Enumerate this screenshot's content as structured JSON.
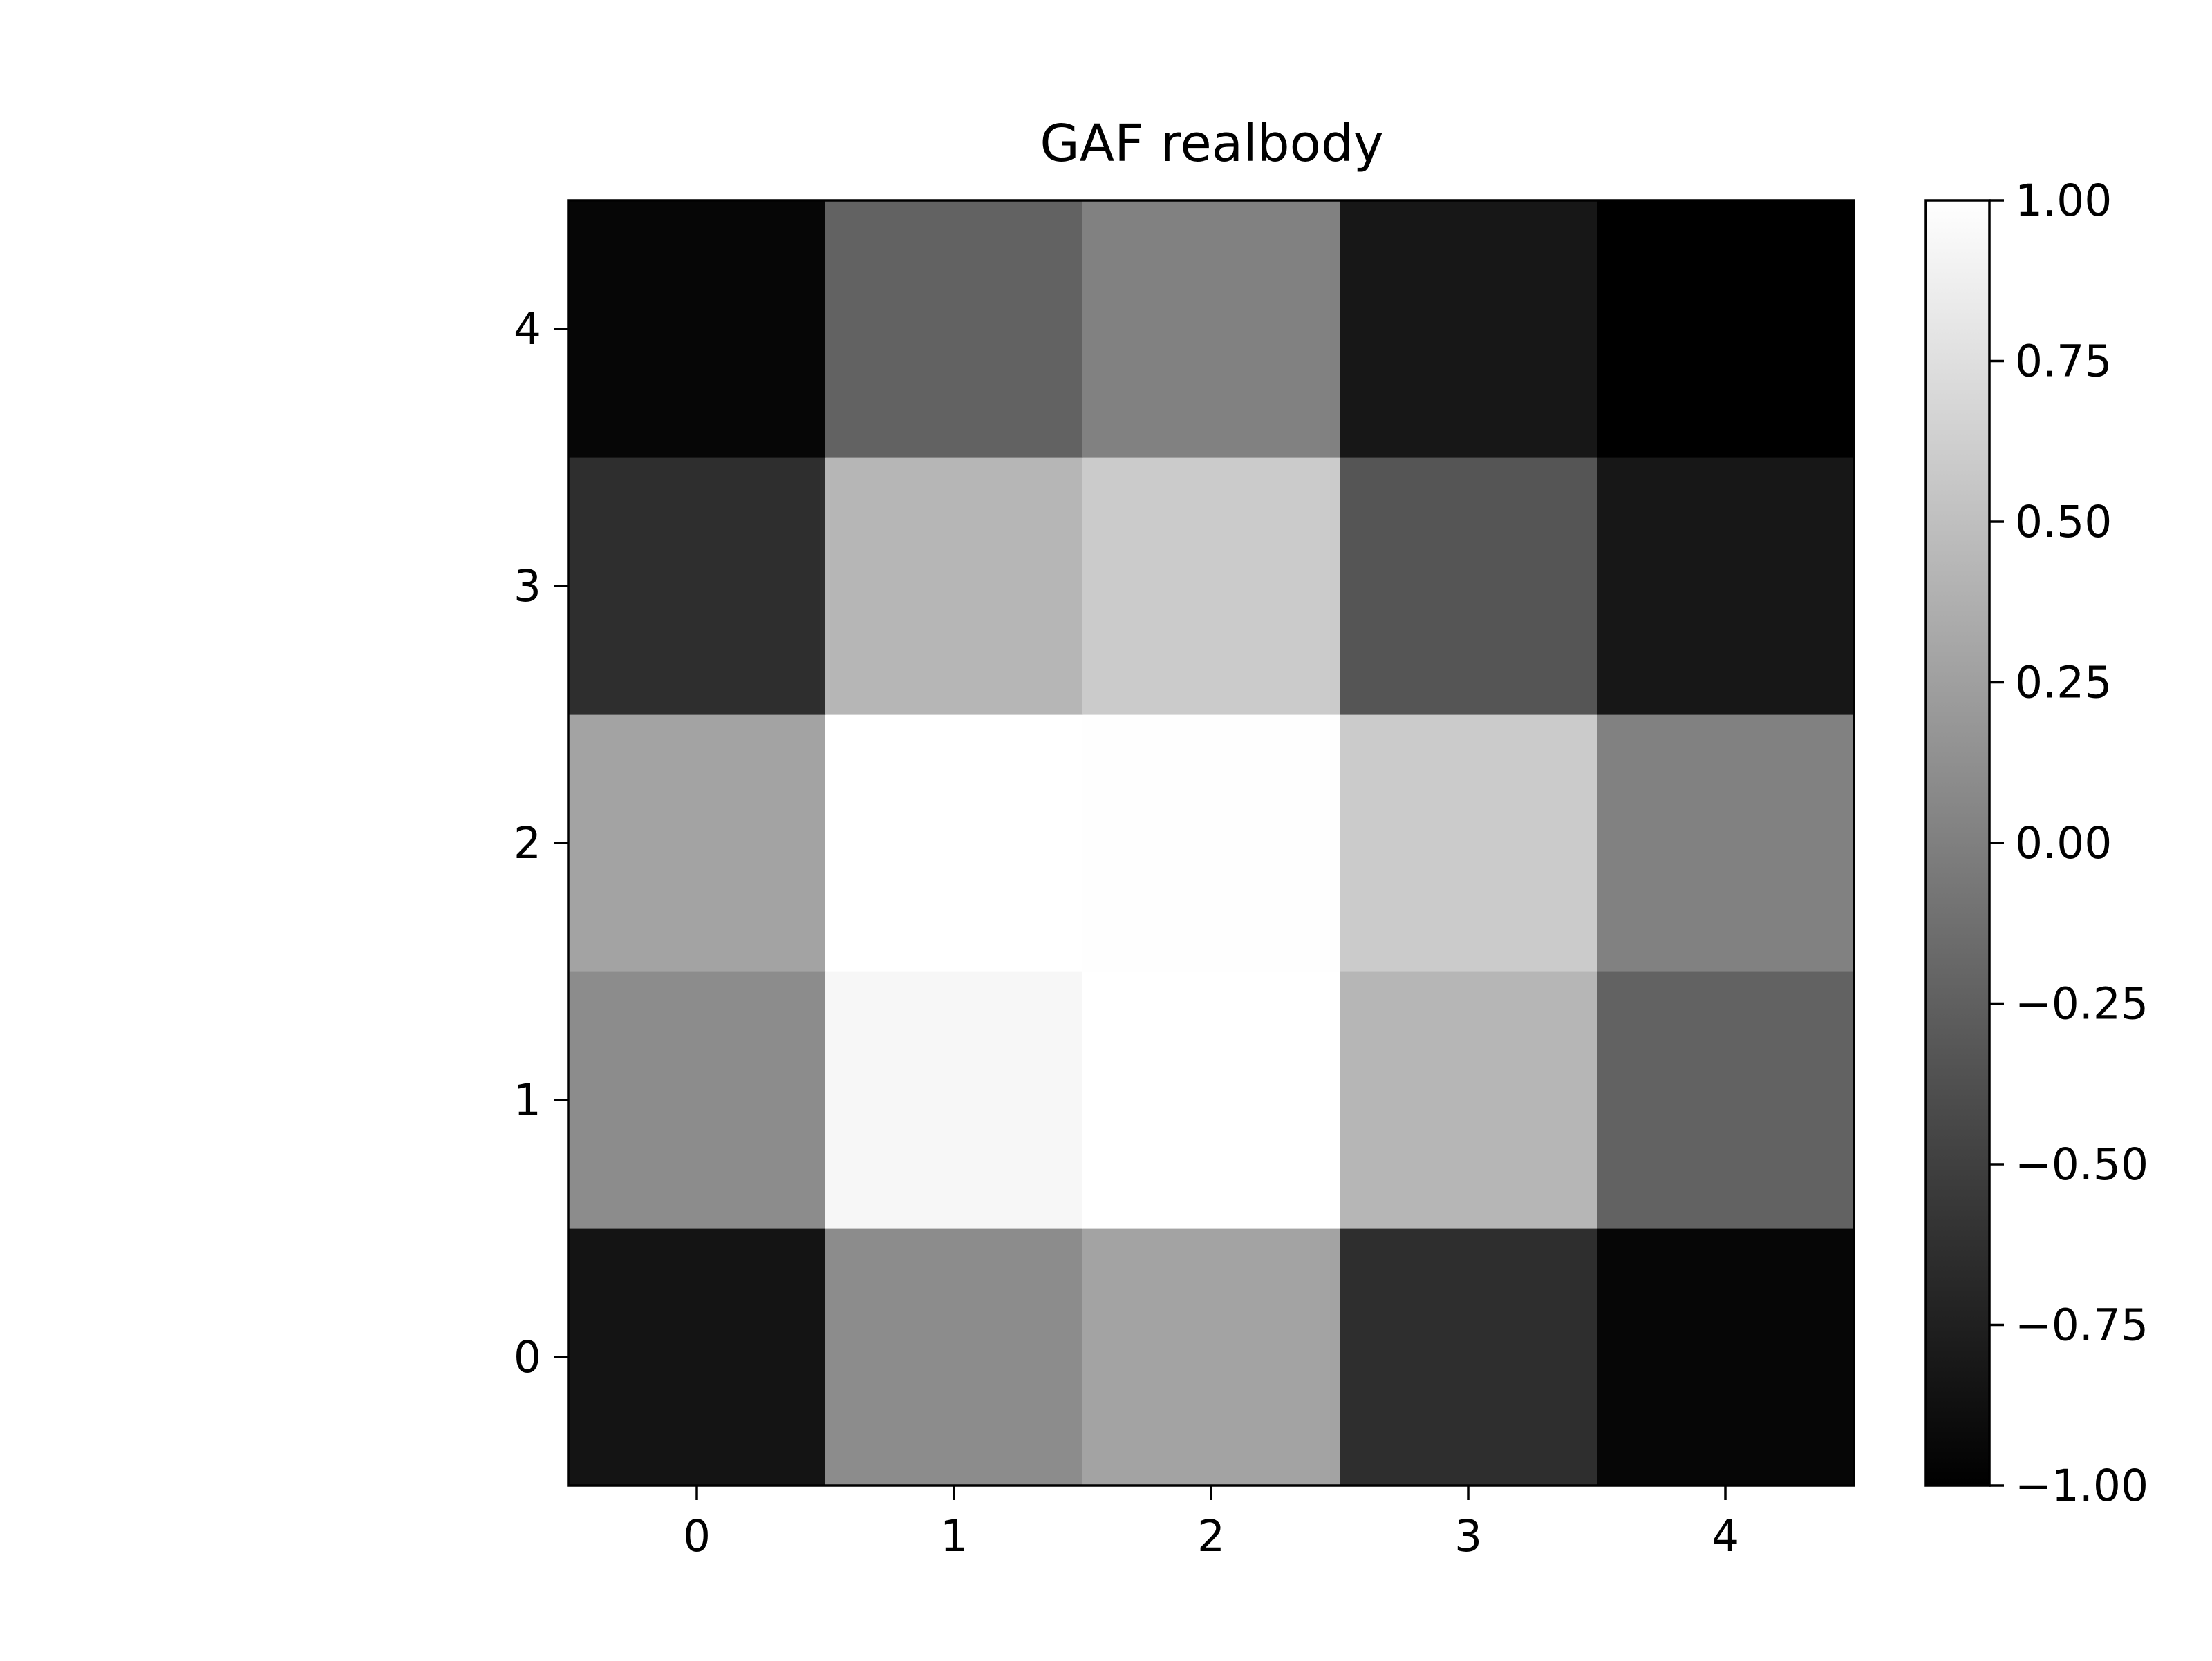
{
  "chart_data": {
    "type": "heatmap",
    "title": "GAF realbody",
    "xlabel": "",
    "ylabel": "",
    "x_categories": [
      "0",
      "1",
      "2",
      "3",
      "4"
    ],
    "y_categories": [
      "0",
      "1",
      "2",
      "3",
      "4"
    ],
    "y_origin": "bottom",
    "values": [
      [
        -0.84,
        0.1,
        0.28,
        -0.64,
        -0.95
      ],
      [
        0.1,
        0.94,
        1.0,
        0.43,
        -0.23
      ],
      [
        0.28,
        1.0,
        0.99,
        0.59,
        0.01
      ],
      [
        -0.64,
        0.43,
        0.59,
        -0.33,
        -0.82
      ],
      [
        -0.95,
        -0.23,
        0.01,
        -0.82,
        -1.0
      ]
    ],
    "colormap": "gray",
    "color_low": "#000000",
    "color_high": "#ffffff",
    "colorbar": {
      "vmin": -1.0,
      "vmax": 1.0,
      "ticks": [
        -1.0,
        -0.75,
        -0.5,
        -0.25,
        0.0,
        0.25,
        0.5,
        0.75,
        1.0
      ],
      "tick_labels": [
        "−1.00",
        "−0.75",
        "−0.50",
        "−0.25",
        "0.00",
        "0.25",
        "0.50",
        "0.75",
        "1.00"
      ]
    },
    "grid": false,
    "legend": "none"
  }
}
